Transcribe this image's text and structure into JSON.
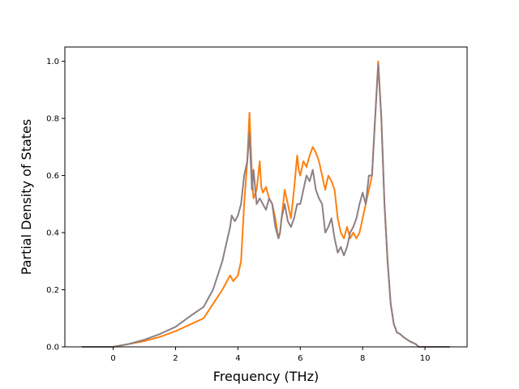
{
  "chart_data": {
    "type": "line",
    "title": "",
    "xlabel": "Frequency (THz)",
    "ylabel": "Partial Density of States",
    "xlim": [
      -1.55,
      11.35
    ],
    "ylim": [
      0.0,
      1.05
    ],
    "xticks": [
      0,
      2,
      4,
      6,
      8,
      10
    ],
    "yticks": [
      0.0,
      0.2,
      0.4,
      0.6,
      0.8,
      1.0
    ],
    "xtick_labels": [
      "0",
      "2",
      "4",
      "6",
      "8",
      "10"
    ],
    "ytick_labels": [
      "0.0",
      "0.2",
      "0.4",
      "0.6",
      "0.8",
      "1.0"
    ],
    "grid": false,
    "legend": "none",
    "series": [
      {
        "color": "#ff7f0e",
        "x": [
          -1.0,
          0.0,
          0.5,
          1.0,
          1.5,
          2.0,
          2.5,
          2.9,
          3.2,
          3.5,
          3.75,
          3.85,
          4.0,
          4.1,
          4.2,
          4.3,
          4.37,
          4.45,
          4.5,
          4.6,
          4.7,
          4.75,
          4.8,
          4.9,
          5.0,
          5.1,
          5.2,
          5.3,
          5.35,
          5.4,
          5.5,
          5.6,
          5.7,
          5.8,
          5.9,
          5.95,
          6.0,
          6.1,
          6.2,
          6.3,
          6.4,
          6.5,
          6.6,
          6.7,
          6.8,
          6.9,
          7.0,
          7.1,
          7.2,
          7.3,
          7.4,
          7.5,
          7.6,
          7.7,
          7.8,
          7.9,
          8.0,
          8.1,
          8.2,
          8.3,
          8.4,
          8.5,
          8.6,
          8.7,
          8.8,
          8.9,
          9.0,
          9.1,
          9.2,
          9.3,
          9.5,
          9.7,
          9.8,
          10.0,
          10.8
        ],
        "y": [
          0.0,
          0.0,
          0.01,
          0.02,
          0.035,
          0.055,
          0.08,
          0.1,
          0.15,
          0.2,
          0.25,
          0.23,
          0.25,
          0.3,
          0.5,
          0.65,
          0.82,
          0.6,
          0.52,
          0.55,
          0.65,
          0.56,
          0.54,
          0.56,
          0.52,
          0.5,
          0.45,
          0.38,
          0.4,
          0.45,
          0.55,
          0.5,
          0.45,
          0.55,
          0.67,
          0.62,
          0.6,
          0.65,
          0.63,
          0.67,
          0.7,
          0.68,
          0.65,
          0.6,
          0.55,
          0.6,
          0.58,
          0.55,
          0.45,
          0.4,
          0.38,
          0.42,
          0.38,
          0.4,
          0.38,
          0.4,
          0.45,
          0.5,
          0.55,
          0.6,
          0.8,
          1.0,
          0.8,
          0.5,
          0.3,
          0.15,
          0.08,
          0.05,
          0.045,
          0.035,
          0.02,
          0.01,
          0.0,
          0.0,
          0.0
        ]
      },
      {
        "color": "#8c7f86",
        "x": [
          -1.0,
          0.0,
          0.5,
          1.0,
          1.5,
          2.0,
          2.5,
          2.9,
          3.2,
          3.5,
          3.75,
          3.8,
          3.9,
          4.0,
          4.1,
          4.2,
          4.3,
          4.37,
          4.45,
          4.5,
          4.6,
          4.7,
          4.8,
          4.9,
          5.0,
          5.1,
          5.2,
          5.3,
          5.35,
          5.4,
          5.5,
          5.6,
          5.7,
          5.8,
          5.9,
          6.0,
          6.1,
          6.2,
          6.3,
          6.4,
          6.5,
          6.6,
          6.7,
          6.8,
          6.9,
          7.0,
          7.1,
          7.2,
          7.3,
          7.4,
          7.5,
          7.6,
          7.7,
          7.8,
          7.9,
          8.0,
          8.1,
          8.2,
          8.3,
          8.4,
          8.5,
          8.6,
          8.7,
          8.8,
          8.9,
          9.0,
          9.1,
          9.2,
          9.3,
          9.5,
          9.7,
          9.8,
          10.0,
          10.8
        ],
        "y": [
          0.0,
          0.0,
          0.01,
          0.025,
          0.045,
          0.07,
          0.11,
          0.14,
          0.2,
          0.3,
          0.42,
          0.46,
          0.44,
          0.46,
          0.5,
          0.6,
          0.65,
          0.75,
          0.55,
          0.62,
          0.5,
          0.52,
          0.5,
          0.48,
          0.52,
          0.5,
          0.42,
          0.38,
          0.4,
          0.45,
          0.5,
          0.44,
          0.42,
          0.45,
          0.5,
          0.5,
          0.55,
          0.6,
          0.58,
          0.62,
          0.55,
          0.52,
          0.5,
          0.4,
          0.42,
          0.45,
          0.38,
          0.33,
          0.35,
          0.32,
          0.35,
          0.4,
          0.42,
          0.45,
          0.5,
          0.54,
          0.5,
          0.6,
          0.6,
          0.8,
          0.99,
          0.8,
          0.5,
          0.3,
          0.15,
          0.08,
          0.05,
          0.045,
          0.035,
          0.02,
          0.01,
          0.0,
          0.0,
          0.0
        ]
      }
    ]
  }
}
